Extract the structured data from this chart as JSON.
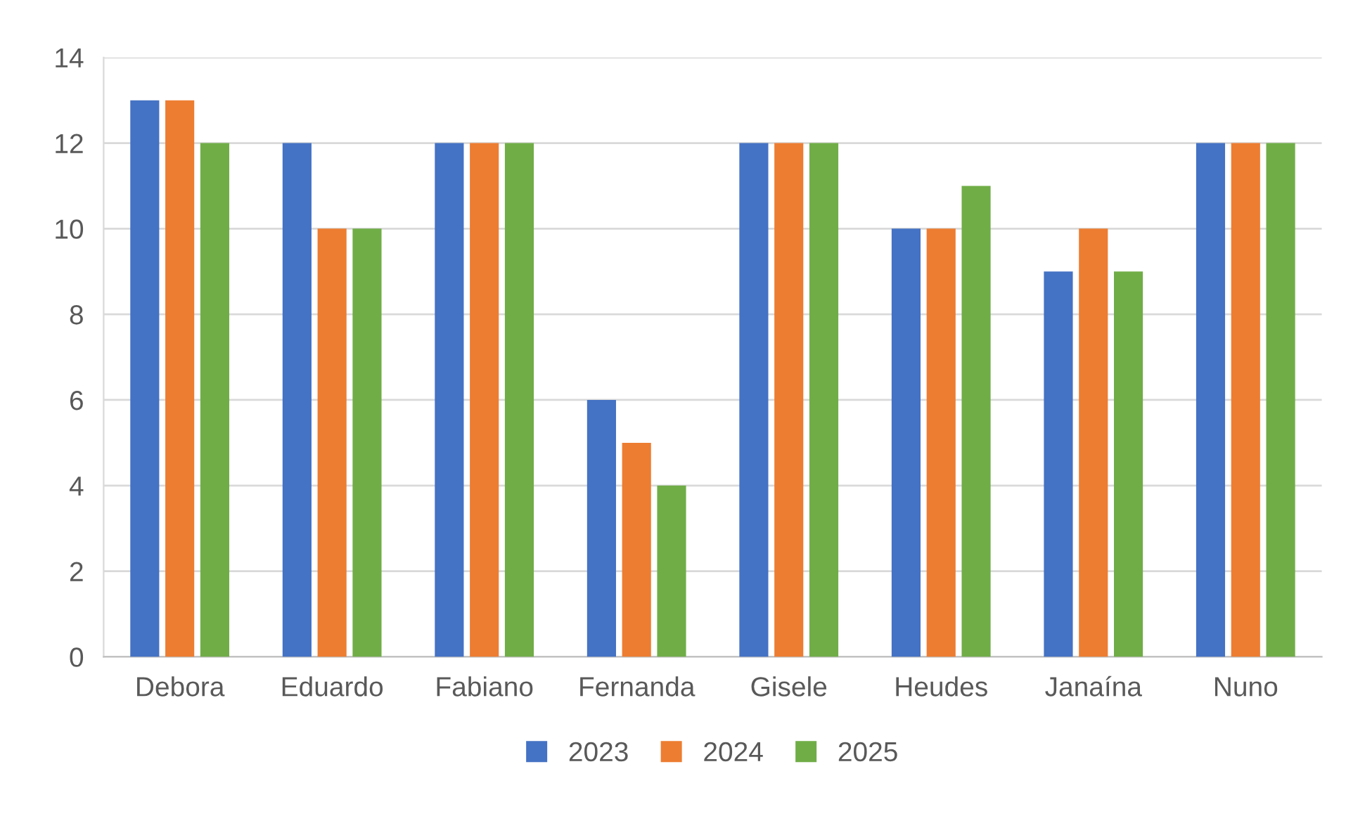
{
  "chart_data": {
    "type": "bar",
    "categories": [
      "Debora",
      "Eduardo",
      "Fabiano",
      "Fernanda",
      "Gisele",
      "Heudes",
      "Janaína",
      "Nuno"
    ],
    "series": [
      {
        "name": "2023",
        "color": "#4472c4",
        "values": [
          13,
          12,
          12,
          6,
          12,
          10,
          9,
          12
        ]
      },
      {
        "name": "2024",
        "color": "#ed7d31",
        "values": [
          13,
          10,
          12,
          5,
          12,
          10,
          10,
          12
        ]
      },
      {
        "name": "2025",
        "color": "#70ad47",
        "values": [
          12,
          10,
          12,
          4,
          12,
          11,
          9,
          12
        ]
      }
    ],
    "ylim": [
      0,
      14
    ],
    "yticks": [
      0,
      2,
      4,
      6,
      8,
      10,
      12,
      14
    ],
    "grid": "y",
    "legend": "bottom"
  }
}
